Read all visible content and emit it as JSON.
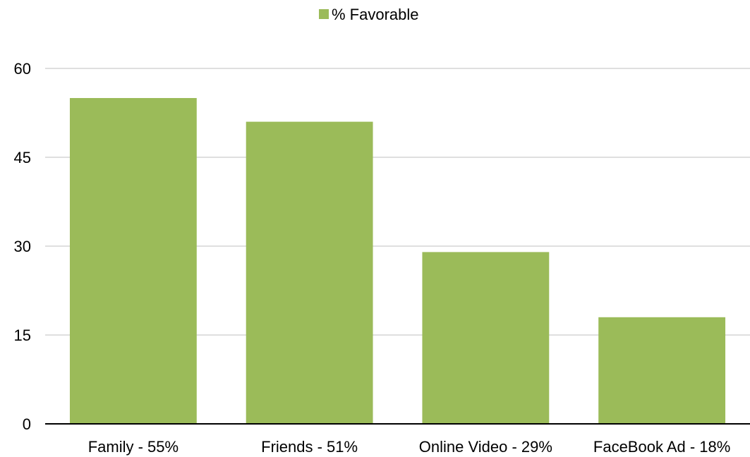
{
  "chart_data": {
    "type": "bar",
    "categories": [
      "Family - 55%",
      "Friends - 51%",
      "Online Video - 29%",
      "FaceBook Ad - 18%"
    ],
    "series": [
      {
        "name": "% Favorable",
        "values": [
          55,
          51,
          29,
          18
        ]
      }
    ],
    "ylim": [
      0,
      60
    ],
    "yticks": [
      "0",
      "15",
      "30",
      "45",
      "60"
    ],
    "ytick_values": [
      0,
      15,
      30,
      45,
      60
    ],
    "grid": true,
    "legend_position": "top-center",
    "colors": {
      "bar": "#9bbb59",
      "grid": "#bfbfbf",
      "axis": "#000000"
    }
  }
}
